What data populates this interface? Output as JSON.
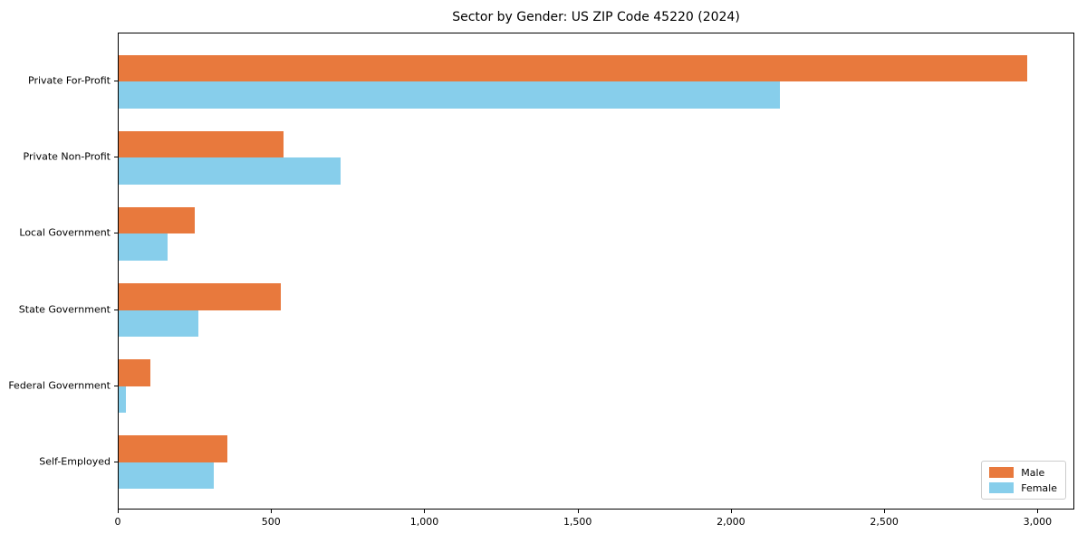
{
  "chart_data": {
    "type": "bar",
    "orientation": "horizontal",
    "title": "Sector by Gender: US ZIP Code 45220 (2024)",
    "categories": [
      "Private For-Profit",
      "Private Non-Profit",
      "Local Government",
      "State Government",
      "Federal Government",
      "Self-Employed"
    ],
    "series": [
      {
        "name": "Male",
        "color": "#e8793d",
        "values": [
          2970,
          540,
          250,
          530,
          105,
          355
        ]
      },
      {
        "name": "Female",
        "color": "#87ceeb",
        "values": [
          2160,
          725,
          160,
          260,
          25,
          310
        ]
      }
    ],
    "xlabel": "",
    "ylabel": "",
    "xlim": [
      0,
      3120
    ],
    "xticks": [
      0,
      500,
      1000,
      1500,
      2000,
      2500,
      3000
    ],
    "xtick_labels": [
      "0",
      "500",
      "1,000",
      "1,500",
      "2,000",
      "2,500",
      "3,000"
    ],
    "grid": false,
    "legend": {
      "position": "lower right"
    },
    "colors": {
      "background": "#ffffff",
      "spine": "#000000",
      "text": "#000000",
      "legend_border": "#cccccc"
    }
  }
}
